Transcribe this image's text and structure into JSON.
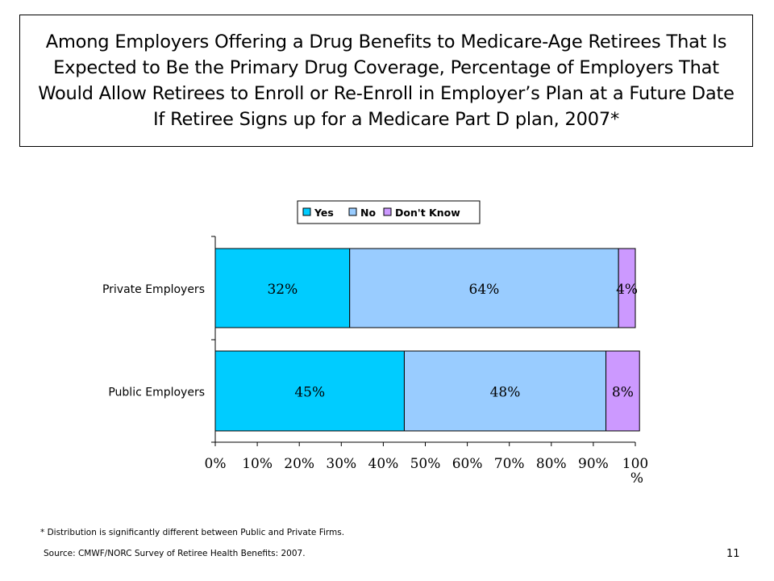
{
  "slide": {
    "title": "Among Employers Offering a Drug Benefits to Medicare-Age Retirees That Is Expected to Be the Primary Drug Coverage, Percentage of Employers That Would Allow Retirees to Enroll or Re-Enroll in Employer’s Plan at a Future Date If Retiree Signs up for a Medicare Part D plan, 2007*",
    "footnote": "* Distribution is significantly different between Public and Private Firms.",
    "source": "Source: CMWF/NORC Survey of Retiree Health Benefits: 2007.",
    "page_number": "11"
  },
  "chart_data": {
    "type": "bar",
    "orientation": "horizontal",
    "stacked": true,
    "categories": [
      "Private Employers",
      "Public Employers"
    ],
    "series": [
      {
        "name": "Yes",
        "values": [
          32,
          45
        ],
        "labels": [
          "32%",
          "45%"
        ],
        "color": "#00CCFF"
      },
      {
        "name": "No",
        "values": [
          64,
          48
        ],
        "labels": [
          "64%",
          "48%"
        ],
        "color": "#99CCFF"
      },
      {
        "name": "Don't Know",
        "values": [
          4,
          8
        ],
        "labels": [
          "4%",
          "8%"
        ],
        "color": "#CC99FF"
      }
    ],
    "xlim": [
      0,
      100
    ],
    "x_ticks": [
      "0%",
      "10%",
      "20%",
      "30%",
      "40%",
      "50%",
      "60%",
      "70%",
      "80%",
      "90%",
      "100%"
    ],
    "legend_position": "top",
    "grid": false
  }
}
